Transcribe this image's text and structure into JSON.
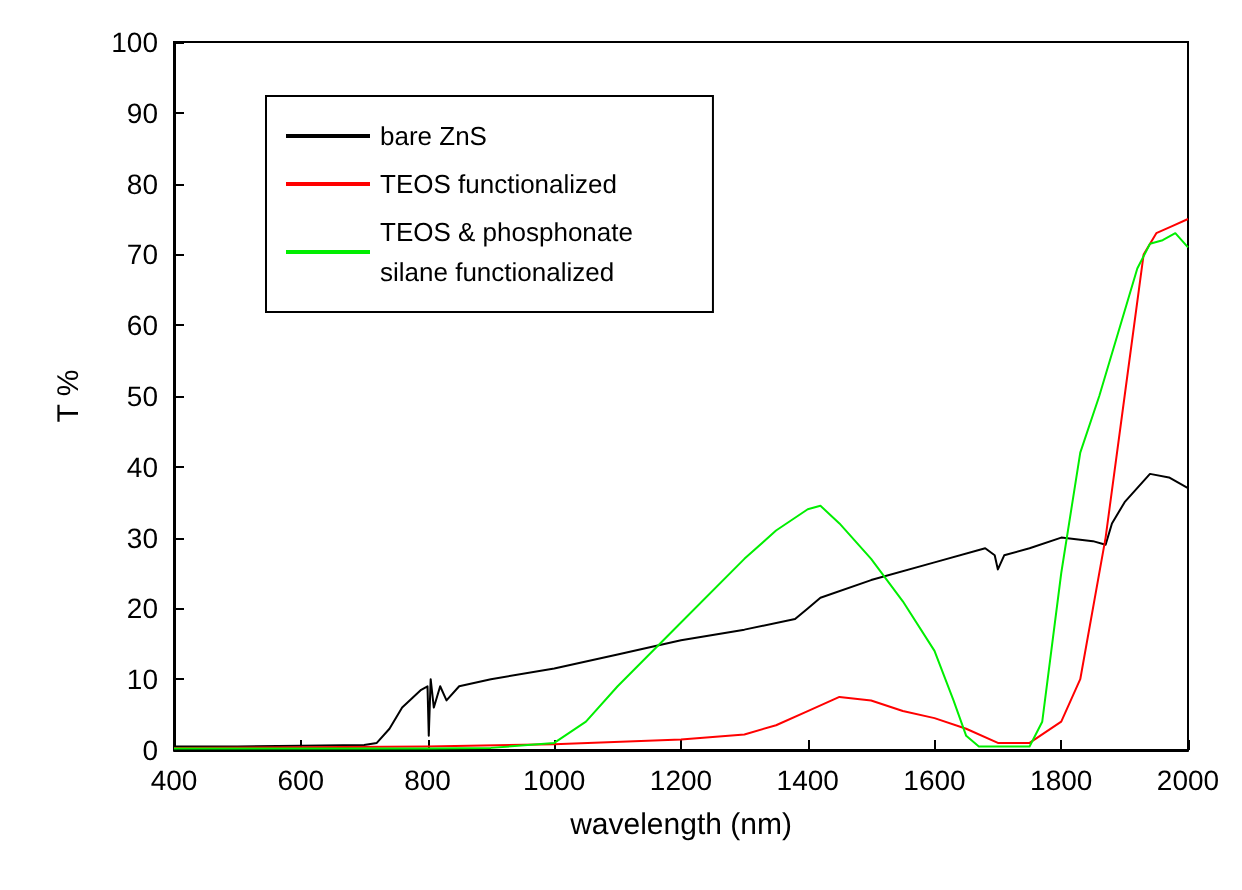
{
  "chart_data": {
    "type": "line",
    "xlabel": "wavelength (nm)",
    "ylabel": "T %",
    "xlim": [
      400,
      2000
    ],
    "xticks": [
      400,
      600,
      800,
      1000,
      1200,
      1400,
      1600,
      1800,
      2000
    ],
    "ylim": [
      0,
      100
    ],
    "yticks": [
      0,
      10,
      20,
      30,
      40,
      50,
      60,
      70,
      80,
      90,
      100
    ],
    "grid": false,
    "legend": "top left",
    "marker": "none",
    "line_style": "solid",
    "series": [
      {
        "name": "bare ZnS",
        "color": "#000000",
        "x": [
          400,
          500,
          600,
          700,
          720,
          740,
          760,
          790,
          800,
          802,
          805,
          810,
          820,
          830,
          850,
          900,
          1000,
          1100,
          1200,
          1300,
          1380,
          1400,
          1420,
          1500,
          1600,
          1680,
          1695,
          1700,
          1710,
          1750,
          1800,
          1850,
          1870,
          1880,
          1900,
          1940,
          1970,
          2000
        ],
        "values": [
          0.5,
          0.5,
          0.6,
          0.7,
          1,
          3,
          6,
          8.5,
          9,
          2,
          10,
          6,
          9,
          7,
          9,
          10,
          11.5,
          13.5,
          15.5,
          17,
          18.5,
          20,
          21.5,
          24,
          26.5,
          28.5,
          27.5,
          25.5,
          27.5,
          28.5,
          30,
          29.5,
          29,
          32,
          35,
          39,
          38.5,
          37
        ]
      },
      {
        "name": "TEOS functionalized",
        "color": "#ff0000",
        "x": [
          400,
          600,
          800,
          1000,
          1200,
          1300,
          1350,
          1400,
          1450,
          1500,
          1550,
          1600,
          1650,
          1700,
          1750,
          1800,
          1830,
          1870,
          1900,
          1930,
          1950,
          1975,
          2000
        ],
        "values": [
          0.3,
          0.4,
          0.5,
          0.8,
          1.5,
          2.2,
          3.5,
          5.5,
          7.5,
          7,
          5.5,
          4.5,
          3,
          1,
          1,
          4,
          10,
          30,
          50,
          70,
          73,
          74,
          75
        ]
      },
      {
        "name": "TEOS & phosphonate\nsilane functionalized",
        "color": "#00ee00",
        "x": [
          400,
          600,
          800,
          900,
          1000,
          1050,
          1100,
          1200,
          1300,
          1350,
          1400,
          1420,
          1450,
          1500,
          1550,
          1600,
          1630,
          1650,
          1670,
          1750,
          1770,
          1800,
          1830,
          1860,
          1890,
          1920,
          1940,
          1960,
          1980,
          2000
        ],
        "values": [
          0.2,
          0.2,
          0.2,
          0.3,
          1,
          4,
          9,
          18,
          27,
          31,
          34,
          34.5,
          32,
          27,
          21,
          14,
          7,
          2,
          0.5,
          0.5,
          4,
          25,
          42,
          50,
          59,
          68,
          71.5,
          72,
          73,
          71
        ]
      }
    ]
  }
}
